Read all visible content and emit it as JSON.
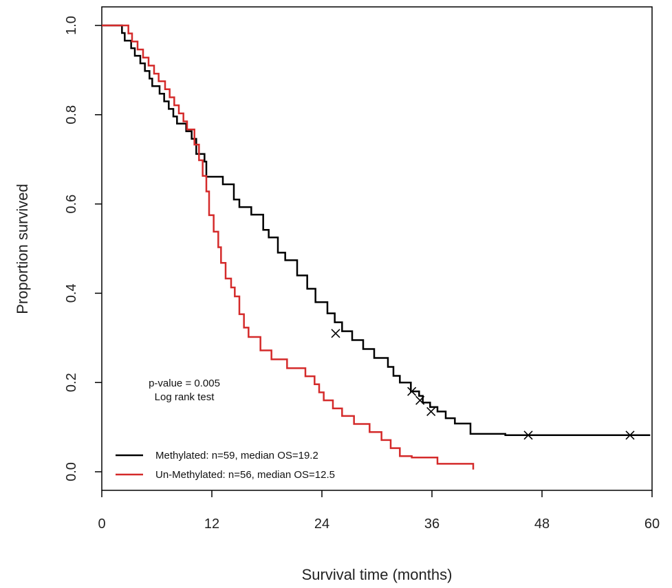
{
  "chart_data": {
    "type": "line",
    "subtype": "kaplan-meier",
    "title": "",
    "xlabel": "Survival time (months)",
    "ylabel": "Proportion survived",
    "xlim": [
      0,
      60
    ],
    "ylim": [
      0,
      1
    ],
    "xticks": [
      "0",
      "12",
      "24",
      "36",
      "48",
      "60"
    ],
    "yticks": [
      "0.0",
      "0.2",
      "0.4",
      "0.6",
      "0.8",
      "1.0"
    ],
    "grid": false,
    "legend_position": "bottom-left",
    "annotations": [
      "p-value = 0.005",
      "Log rank test"
    ],
    "series": [
      {
        "name": "Methylated: n=59, median OS=19.2",
        "color": "#000000",
        "x": [
          0,
          2.2,
          2.5,
          3.2,
          3.6,
          4.2,
          4.7,
          5.2,
          5.5,
          6.3,
          6.8,
          7.3,
          7.8,
          8.2,
          9.2,
          9.8,
          10.3,
          11.2,
          11.4,
          13.2,
          14.4,
          15.0,
          16.3,
          17.6,
          18.2,
          19.2,
          20.0,
          21.3,
          22.4,
          23.3,
          24.6,
          25.4,
          26.2,
          27.3,
          28.5,
          29.7,
          31.2,
          31.8,
          32.5,
          33.7,
          34.6,
          35.0,
          35.8,
          36.6,
          37.5,
          38.5,
          40.2,
          44.0,
          50.0,
          56.0,
          59.0,
          59.8
        ],
        "y": [
          1.0,
          0.983,
          0.966,
          0.949,
          0.932,
          0.915,
          0.898,
          0.881,
          0.864,
          0.847,
          0.83,
          0.813,
          0.796,
          0.78,
          0.763,
          0.746,
          0.712,
          0.695,
          0.661,
          0.644,
          0.61,
          0.593,
          0.576,
          0.542,
          0.525,
          0.491,
          0.474,
          0.44,
          0.41,
          0.38,
          0.355,
          0.335,
          0.315,
          0.295,
          0.275,
          0.255,
          0.235,
          0.215,
          0.2,
          0.18,
          0.17,
          0.155,
          0.145,
          0.135,
          0.12,
          0.108,
          0.085,
          0.082,
          0.082,
          0.082,
          0.082,
          0.082
        ],
        "censored": [
          [
            25.5,
            0.31
          ],
          [
            33.8,
            0.18
          ],
          [
            34.7,
            0.16
          ],
          [
            35.9,
            0.135
          ],
          [
            46.5,
            0.082
          ],
          [
            57.6,
            0.082
          ]
        ]
      },
      {
        "name": "Un-Methylated: n=56, median OS=12.5",
        "color": "#d42a2a",
        "x": [
          0,
          2.9,
          3.3,
          3.9,
          4.5,
          5.1,
          5.7,
          6.2,
          6.9,
          7.4,
          7.9,
          8.4,
          8.9,
          9.3,
          10.1,
          10.6,
          11.0,
          11.4,
          11.7,
          12.2,
          12.7,
          13.0,
          13.5,
          14.1,
          14.5,
          15.0,
          15.5,
          16.0,
          17.3,
          18.5,
          20.2,
          22.2,
          23.2,
          23.7,
          24.2,
          25.2,
          26.2,
          27.5,
          28.3,
          29.2,
          30.5,
          31.5,
          32.5,
          33.8,
          36.6,
          37.5,
          40.5
        ],
        "y": [
          1.0,
          0.982,
          0.964,
          0.946,
          0.928,
          0.91,
          0.892,
          0.875,
          0.857,
          0.839,
          0.821,
          0.803,
          0.785,
          0.767,
          0.733,
          0.698,
          0.663,
          0.628,
          0.575,
          0.538,
          0.503,
          0.468,
          0.433,
          0.413,
          0.393,
          0.353,
          0.323,
          0.302,
          0.272,
          0.252,
          0.232,
          0.214,
          0.196,
          0.178,
          0.16,
          0.142,
          0.125,
          0.107,
          0.107,
          0.089,
          0.071,
          0.053,
          0.035,
          0.032,
          0.018,
          0.018,
          0.005
        ]
      }
    ]
  }
}
